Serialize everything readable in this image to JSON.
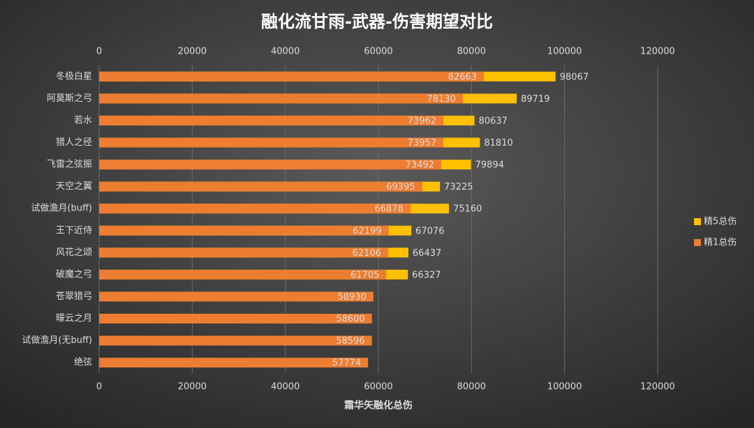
{
  "chart_data": {
    "type": "overlap_bar",
    "title": "融化流甘雨-武器-伤害期望对比",
    "x_label": "霜华矢融化总伤",
    "categories": [
      "冬极白星",
      "阿莫斯之弓",
      "若水",
      "猎人之径",
      "飞雷之弦振",
      "天空之翼",
      "试做澹月(buff)",
      "王下近侍",
      "风花之颂",
      "破魔之弓",
      "苍翠猎弓",
      "曚云之月",
      "试做澹月(无buff)",
      "绝弦"
    ],
    "series": [
      {
        "name": "精5总伤",
        "color": "#ffc000",
        "values": [
          98067,
          89719,
          80637,
          81810,
          79894,
          73225,
          75160,
          67076,
          66437,
          66327,
          null,
          null,
          null,
          null
        ]
      },
      {
        "name": "精1总伤",
        "color": "#ed7d31",
        "values": [
          82663,
          78130,
          73962,
          73957,
          73492,
          69395,
          66878,
          62199,
          62106,
          61705,
          58930,
          58600,
          58596,
          57774
        ]
      }
    ],
    "xlim": [
      0,
      120000
    ],
    "xticks": [
      0,
      20000,
      40000,
      60000,
      80000,
      100000,
      120000
    ],
    "grid": true,
    "legend": "right"
  }
}
